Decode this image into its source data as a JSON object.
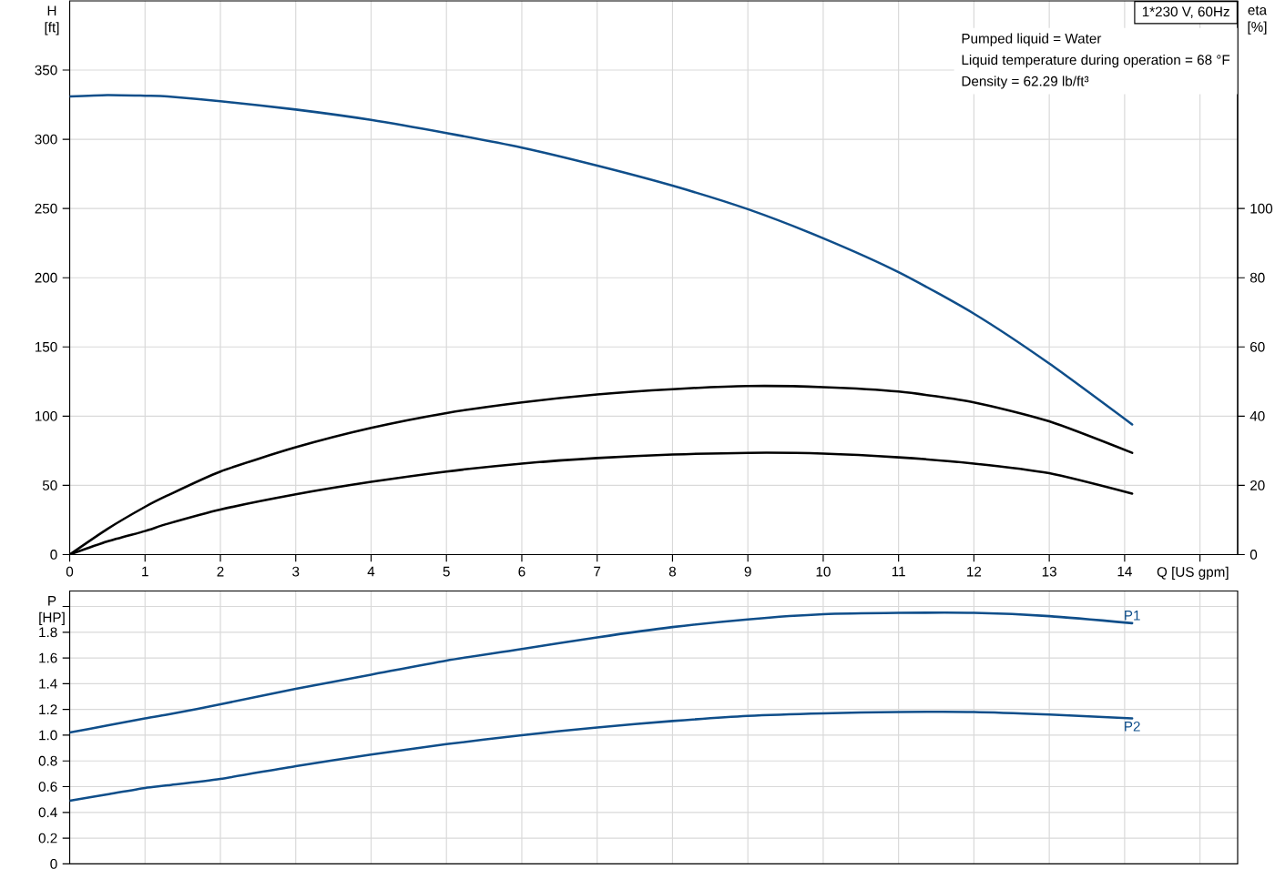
{
  "chart_data": [
    {
      "type": "line",
      "title": "1*230 V, 60Hz",
      "xlabel": "Q [US gpm]",
      "ylabel": "H [ft]",
      "y2label": "eta [%]",
      "annotations": [
        "Pumped liquid = Water",
        "Liquid temperature during operation = 68 °F",
        "Density = 62.29 lb/ft³"
      ],
      "x": [
        0,
        0.5,
        1,
        1.3,
        2,
        3,
        4,
        5,
        6,
        7,
        8,
        9,
        10,
        11,
        12,
        13,
        14.1
      ],
      "series": [
        {
          "color": "#0f4e8a",
          "values": [
            331,
            332,
            331.5,
            331,
            327.5,
            321.5,
            314,
            304.5,
            294,
            281,
            266.5,
            249.5,
            228.5,
            204,
            174,
            138,
            94
          ]
        },
        {
          "color": "#000000",
          "axis": "y2",
          "values": [
            0,
            7.4,
            13.8,
            17.1,
            24,
            31,
            36.6,
            40.9,
            44,
            46.3,
            47.8,
            48.7,
            48.4,
            47.1,
            44,
            38.5,
            29.4
          ]
        },
        {
          "color": "#000000",
          "axis": "y2",
          "values": [
            0,
            3.8,
            6.8,
            8.9,
            13,
            17.4,
            21,
            24,
            26.3,
            27.9,
            28.9,
            29.4,
            29.2,
            28.1,
            26.3,
            23.5,
            17.6
          ]
        }
      ],
      "xlim": [
        0,
        15.5
      ],
      "xticks": [
        0,
        1,
        2,
        3,
        4,
        5,
        6,
        7,
        8,
        9,
        10,
        11,
        12,
        13,
        14,
        {
          "value": 15,
          "label": null
        }
      ],
      "ylim": [
        0,
        400
      ],
      "yticks": [
        0,
        50,
        100,
        150,
        200,
        250,
        300,
        350
      ],
      "y2lim": [
        0,
        160
      ],
      "y2ticks": [
        0,
        20,
        40,
        60,
        80,
        100
      ],
      "grid": true
    },
    {
      "type": "line",
      "ylabel": "P [HP]",
      "x": [
        0,
        0.5,
        1,
        1.3,
        2,
        3,
        4,
        5,
        6,
        7,
        8,
        9,
        10,
        11,
        12,
        13,
        14.1
      ],
      "series": [
        {
          "name": "P1",
          "color": "#0f4e8a",
          "values": [
            1.02,
            1.075,
            1.13,
            1.16,
            1.24,
            1.36,
            1.47,
            1.58,
            1.67,
            1.76,
            1.84,
            1.9,
            1.94,
            1.95,
            1.95,
            1.925,
            1.87
          ]
        },
        {
          "name": "P2",
          "color": "#0f4e8a",
          "values": [
            0.49,
            0.54,
            0.59,
            0.61,
            0.66,
            0.76,
            0.85,
            0.93,
            1.0,
            1.06,
            1.11,
            1.15,
            1.17,
            1.18,
            1.18,
            1.16,
            1.13
          ]
        }
      ],
      "xlim": [
        0,
        15.5
      ],
      "xticks": [
        0,
        1,
        2,
        3,
        4,
        5,
        6,
        7,
        8,
        9,
        10,
        11,
        12,
        13,
        14,
        15
      ],
      "ylim": [
        0,
        2.12
      ],
      "yticks": [
        0,
        0.2,
        0.4,
        0.6,
        0.8,
        {
          "value": 1,
          "label": "1.0"
        },
        1.2,
        1.4,
        1.6,
        1.8,
        {
          "value": 2,
          "label": null
        }
      ],
      "tick_labels": "y",
      "grid": true
    }
  ]
}
